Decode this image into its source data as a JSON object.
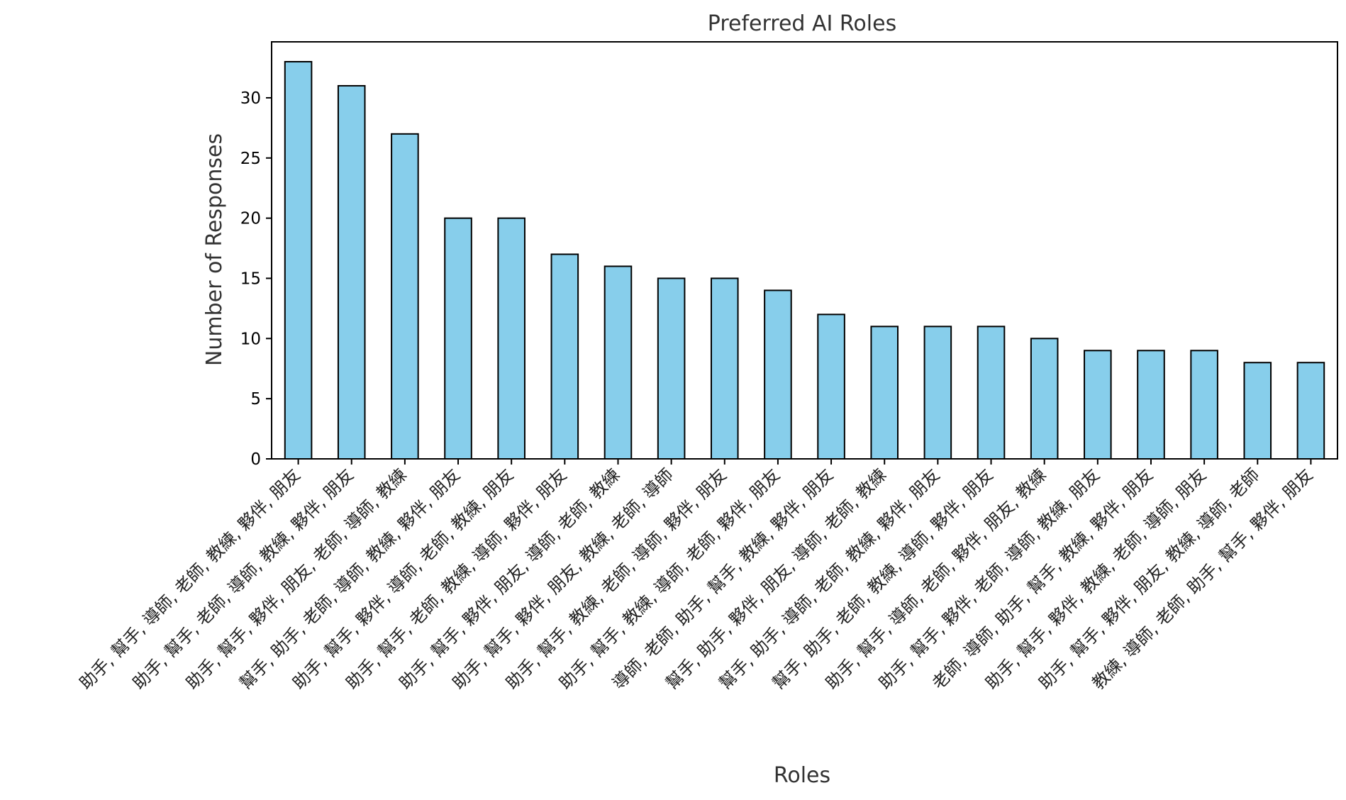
{
  "chart_data": {
    "type": "bar",
    "title": "Preferred AI Roles",
    "xlabel": "Roles",
    "ylabel": "Number of Responses",
    "ylim": [
      0,
      34.65
    ],
    "yticks": [
      0,
      5,
      10,
      15,
      20,
      25,
      30
    ],
    "grid": false,
    "categories": [
      "助手, 幫手, 導師, 老師, 教練, 夥伴, 朋友",
      "助手, 幫手, 老師, 導師, 教練, 夥伴, 朋友",
      "助手, 幫手, 夥伴, 朋友, 老師, 導師, 教練",
      "幫手, 助手, 老師, 導師, 教練, 夥伴, 朋友",
      "助手, 幫手, 夥伴, 導師, 老師, 教練, 朋友",
      "助手, 幫手, 老師, 教練, 導師, 夥伴, 朋友",
      "助手, 幫手, 夥伴, 朋友, 導師, 老師, 教練",
      "助手, 幫手, 夥伴, 朋友, 教練, 老師, 導師",
      "助手, 幫手, 教練, 老師, 導師, 夥伴, 朋友",
      "助手, 幫手, 教練, 導師, 老師, 夥伴, 朋友",
      "導師, 老師, 助手, 幫手, 教練, 夥伴, 朋友",
      "幫手, 助手, 夥伴, 朋友, 導師, 老師, 教練",
      "幫手, 助手, 導師, 老師, 教練, 夥伴, 朋友",
      "幫手, 助手, 老師, 教練, 導師, 夥伴, 朋友",
      "助手, 幫手, 導師, 老師, 夥伴, 朋友, 教練",
      "助手, 幫手, 夥伴, 老師, 導師, 教練, 朋友",
      "老師, 導師, 助手, 幫手, 教練, 夥伴, 朋友",
      "助手, 幫手, 夥伴, 教練, 老師, 導師, 朋友",
      "助手, 幫手, 夥伴, 朋友, 教練, 導師, 老師",
      "教練, 導師, 老師, 助手, 幫手, 夥伴, 朋友"
    ],
    "values": [
      33,
      31,
      27,
      20,
      20,
      17,
      16,
      15,
      15,
      14,
      12,
      11,
      11,
      11,
      10,
      9,
      9,
      9,
      8,
      8
    ],
    "colors": {
      "bar_fill": "#87CEEB",
      "bar_edge": "#000000",
      "axis": "#000000",
      "text": "#333333"
    }
  }
}
